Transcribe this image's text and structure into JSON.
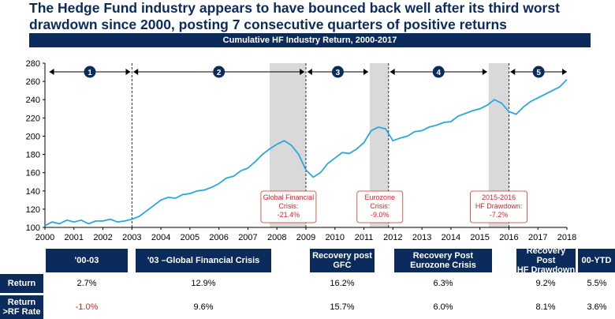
{
  "headline": {
    "line1": "The Hedge Fund industry appears to have bounced back well after its third worst",
    "line2": "drawdown since 2000, posting 7 consecutive quarters of positive returns"
  },
  "banner": "Cumulative HF Industry Return, 2000-2017",
  "chart_data": {
    "type": "line",
    "title": "Cumulative HF Industry Return, 2000-2017",
    "xlim": [
      2000,
      2018
    ],
    "ylim": [
      100,
      280
    ],
    "x_ticks": [
      "2000",
      "2001",
      "2002",
      "2003",
      "2004",
      "2005",
      "2006",
      "2007",
      "2008",
      "2009",
      "2010",
      "2011",
      "2012",
      "2013",
      "2014",
      "2015",
      "2016",
      "2017",
      "2018"
    ],
    "y_ticks": [
      "100",
      "120",
      "140",
      "160",
      "180",
      "200",
      "220",
      "240",
      "260",
      "280"
    ],
    "grid": false,
    "color": "#29a8e0",
    "series": [
      {
        "x": [
          2000.0,
          2000.25,
          2000.5,
          2000.75,
          2001.0,
          2001.25,
          2001.5,
          2001.75,
          2002.0,
          2002.25,
          2002.5,
          2002.75,
          2003.0,
          2003.25,
          2003.5,
          2003.75,
          2004.0,
          2004.25,
          2004.5,
          2004.75,
          2005.0,
          2005.25,
          2005.5,
          2005.75,
          2006.0,
          2006.25,
          2006.5,
          2006.75,
          2007.0,
          2007.25,
          2007.5,
          2007.75,
          2008.0,
          2008.25,
          2008.5,
          2008.75,
          2009.0,
          2009.25,
          2009.5,
          2009.75,
          2010.0,
          2010.25,
          2010.5,
          2010.75,
          2011.0,
          2011.25,
          2011.5,
          2011.75,
          2012.0,
          2012.25,
          2012.5,
          2012.75,
          2013.0,
          2013.25,
          2013.5,
          2013.75,
          2014.0,
          2014.25,
          2014.5,
          2014.75,
          2015.0,
          2015.25,
          2015.5,
          2015.75,
          2016.0,
          2016.25,
          2016.5,
          2016.75,
          2017.0,
          2017.25,
          2017.5,
          2017.75,
          2018.0
        ],
        "y": [
          102,
          106,
          104,
          108,
          106,
          108,
          104,
          107,
          107,
          109,
          106,
          107,
          109,
          112,
          118,
          124,
          130,
          133,
          132,
          136,
          137,
          140,
          141,
          144,
          148,
          154,
          156,
          162,
          165,
          172,
          180,
          186,
          191,
          195,
          190,
          180,
          163,
          155,
          160,
          170,
          176,
          182,
          181,
          186,
          193,
          206,
          210,
          208,
          195,
          198,
          200,
          205,
          206,
          210,
          212,
          215,
          216,
          222,
          225,
          228,
          230,
          234,
          240,
          236,
          227,
          224,
          232,
          238,
          242,
          246,
          250,
          254,
          262
        ]
      }
    ],
    "periods": [
      {
        "n": "1"
      },
      {
        "n": "2"
      },
      {
        "n": "3"
      },
      {
        "n": "4"
      },
      {
        "n": "5"
      }
    ],
    "crises": [
      {
        "label1": "Global Financial",
        "label2": "Crisis:",
        "label3": "-21.4%"
      },
      {
        "label1": "Eurozone",
        "label2": "Crisis:",
        "label3": "-9.0%"
      },
      {
        "label1": "2015-2016",
        "label2": "HF Drawdown:",
        "label3": "-7.2%"
      }
    ]
  },
  "table": {
    "headers": [
      {
        "l1": "'00-03",
        "l2": ""
      },
      {
        "l1": "'03 –Global Financial Crisis",
        "l2": ""
      },
      {
        "l1": "Recovery post",
        "l2": "GFC"
      },
      {
        "l1": "Recovery Post",
        "l2": "Eurozone Crisis"
      },
      {
        "l1": "Recovery Post",
        "l2": "HF Drawdown"
      },
      {
        "l1": "00-YTD",
        "l2": ""
      }
    ],
    "rows": [
      {
        "label1": "Return",
        "label2": "",
        "values": [
          "2.7%",
          "12.9%",
          "16.2%",
          "6.3%",
          "9.2%",
          "5.5%"
        ]
      },
      {
        "label1": "Return",
        "label2": ">RF Rate",
        "values": [
          "-1.0%",
          "9.6%",
          "15.7%",
          "6.0%",
          "8.1%",
          "3.6%"
        ]
      }
    ]
  }
}
